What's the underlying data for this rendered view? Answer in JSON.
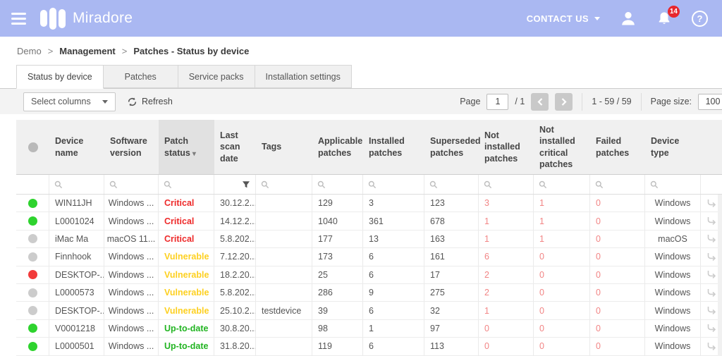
{
  "app_bar": {
    "brand": "Miradore",
    "contact_us_label": "CONTACT US",
    "notification_count": "14",
    "help_glyph": "?"
  },
  "breadcrumb": {
    "separator": ">",
    "items": [
      "Demo",
      "Management",
      "Patches - Status by device"
    ]
  },
  "tabs": [
    {
      "label": "Status by device",
      "active": true
    },
    {
      "label": "Patches",
      "active": false
    },
    {
      "label": "Service packs",
      "active": false
    },
    {
      "label": "Installation settings",
      "active": false
    }
  ],
  "toolbar": {
    "select_columns_label": "Select columns",
    "refresh_label": "Refresh",
    "page_label": "Page",
    "page_value": "1",
    "page_total": "/ 1",
    "range_text": "1 - 59 / 59",
    "page_size_label": "Page size:",
    "page_size_value": "100"
  },
  "table": {
    "columns": [
      {
        "key": "status",
        "label": "",
        "filter": "none",
        "sorted": false,
        "align": "center"
      },
      {
        "key": "device_name",
        "label": "Device name",
        "filter": "search",
        "sorted": false,
        "align": "left"
      },
      {
        "key": "software_version",
        "label": "Software version",
        "filter": "search",
        "sorted": false,
        "align": "center"
      },
      {
        "key": "patch_status",
        "label": "Patch status",
        "filter": "search",
        "sorted": true,
        "align": "left"
      },
      {
        "key": "last_scan",
        "label": "Last scan date",
        "filter": "funnel",
        "sorted": false,
        "align": "left"
      },
      {
        "key": "tags",
        "label": "Tags",
        "filter": "search",
        "sorted": false,
        "align": "left"
      },
      {
        "key": "applicable",
        "label": "Applicable patches",
        "filter": "search",
        "sorted": false,
        "align": "left"
      },
      {
        "key": "installed",
        "label": "Installed patches",
        "filter": "search",
        "sorted": false,
        "align": "left"
      },
      {
        "key": "superseded",
        "label": "Superseded patches",
        "filter": "search",
        "sorted": false,
        "align": "left"
      },
      {
        "key": "not_installed",
        "label": "Not installed patches",
        "filter": "search",
        "sorted": false,
        "align": "left",
        "negative": true
      },
      {
        "key": "not_installed_critical",
        "label": "Not installed critical patches",
        "filter": "search",
        "sorted": false,
        "align": "left",
        "negative": true
      },
      {
        "key": "failed",
        "label": "Failed patches",
        "filter": "search",
        "sorted": false,
        "align": "left",
        "negative": true
      },
      {
        "key": "device_type",
        "label": "Device type",
        "filter": "search",
        "sorted": false,
        "align": "center"
      },
      {
        "key": "action",
        "label": "",
        "filter": "none",
        "sorted": false,
        "align": "center"
      }
    ],
    "rows": [
      {
        "status": "green",
        "device_name": "WIN11JH",
        "software_version": "Windows ...",
        "patch_status": "Critical",
        "patch_status_key": "critical",
        "last_scan": "30.12.2...",
        "tags": "",
        "applicable": "129",
        "installed": "3",
        "superseded": "123",
        "not_installed": "3",
        "not_installed_critical": "1",
        "failed": "0",
        "device_type": "Windows"
      },
      {
        "status": "green",
        "device_name": "L0001024",
        "software_version": "Windows ...",
        "patch_status": "Critical",
        "patch_status_key": "critical",
        "last_scan": "14.12.2...",
        "tags": "",
        "applicable": "1040",
        "installed": "361",
        "superseded": "678",
        "not_installed": "1",
        "not_installed_critical": "1",
        "failed": "0",
        "device_type": "Windows"
      },
      {
        "status": "gray",
        "device_name": "iMac Ma",
        "software_version": "macOS 11...",
        "patch_status": "Critical",
        "patch_status_key": "critical",
        "last_scan": "5.8.202...",
        "tags": "",
        "applicable": "177",
        "installed": "13",
        "superseded": "163",
        "not_installed": "1",
        "not_installed_critical": "1",
        "failed": "0",
        "device_type": "macOS"
      },
      {
        "status": "gray",
        "device_name": "Finnhook",
        "software_version": "Windows ...",
        "patch_status": "Vulnerable",
        "patch_status_key": "vulnerable",
        "last_scan": "7.12.20...",
        "tags": "",
        "applicable": "173",
        "installed": "6",
        "superseded": "161",
        "not_installed": "6",
        "not_installed_critical": "0",
        "failed": "0",
        "device_type": "Windows"
      },
      {
        "status": "red",
        "device_name": "DESKTOP-...",
        "software_version": "Windows ...",
        "patch_status": "Vulnerable",
        "patch_status_key": "vulnerable",
        "last_scan": "18.2.20...",
        "tags": "",
        "applicable": "25",
        "installed": "6",
        "superseded": "17",
        "not_installed": "2",
        "not_installed_critical": "0",
        "failed": "0",
        "device_type": "Windows"
      },
      {
        "status": "gray",
        "device_name": "L0000573",
        "software_version": "Windows ...",
        "patch_status": "Vulnerable",
        "patch_status_key": "vulnerable",
        "last_scan": "5.8.202...",
        "tags": "",
        "applicable": "286",
        "installed": "9",
        "superseded": "275",
        "not_installed": "2",
        "not_installed_critical": "0",
        "failed": "0",
        "device_type": "Windows"
      },
      {
        "status": "gray",
        "device_name": "DESKTOP-...",
        "software_version": "Windows ...",
        "patch_status": "Vulnerable",
        "patch_status_key": "vulnerable",
        "last_scan": "25.10.2...",
        "tags": "testdevice",
        "applicable": "39",
        "installed": "6",
        "superseded": "32",
        "not_installed": "1",
        "not_installed_critical": "0",
        "failed": "0",
        "device_type": "Windows"
      },
      {
        "status": "green",
        "device_name": "V0001218",
        "software_version": "Windows ...",
        "patch_status": "Up-to-date",
        "patch_status_key": "up_to_date",
        "last_scan": "30.8.20...",
        "tags": "",
        "applicable": "98",
        "installed": "1",
        "superseded": "97",
        "not_installed": "0",
        "not_installed_critical": "0",
        "failed": "0",
        "device_type": "Windows"
      },
      {
        "status": "green",
        "device_name": "L0000501",
        "software_version": "Windows ...",
        "patch_status": "Up-to-date",
        "patch_status_key": "up_to_date",
        "last_scan": "31.8.20...",
        "tags": "",
        "applicable": "119",
        "installed": "6",
        "superseded": "113",
        "not_installed": "0",
        "not_installed_critical": "0",
        "failed": "0",
        "device_type": "Windows"
      }
    ]
  },
  "colors": {
    "app_bar_bg": "#aab8f2",
    "badge_red": "#e8272d",
    "critical": "#ee2a2a",
    "vulnerable": "#fdd020",
    "up_to_date": "#22b422",
    "dot_green": "#2ed32e",
    "dot_red": "#f23b3b",
    "dot_gray": "#cccccc",
    "negative_value": "#f28585"
  }
}
